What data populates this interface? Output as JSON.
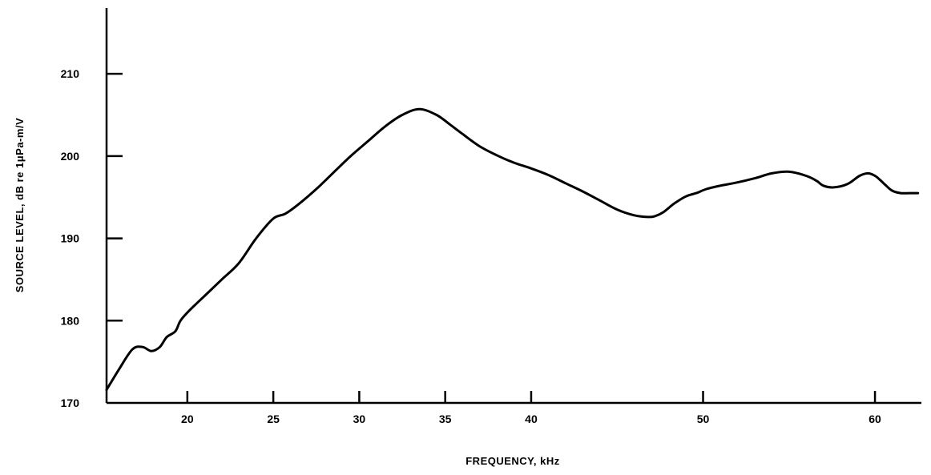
{
  "chart_data": {
    "type": "line",
    "title": "",
    "xlabel": "FREQUENCY, kHz",
    "ylabel": "SOURCE LEVEL, dB re 1μPa-m/V",
    "xlim": [
      15.3,
      62.7
    ],
    "ylim": [
      170,
      218
    ],
    "grid": false,
    "x_ticks": [
      20,
      25,
      30,
      35,
      40,
      50,
      60
    ],
    "y_ticks": [
      170,
      180,
      190,
      200,
      210
    ],
    "series": [
      {
        "x": [
          15.3,
          16.0,
          16.8,
          17.4,
          17.9,
          18.4,
          18.8,
          19.3,
          19.6,
          20.1,
          21.0,
          22.0,
          23.0,
          24.0,
          25.0,
          25.7,
          26.5,
          27.5,
          28.5,
          29.5,
          30.5,
          31.5,
          32.5,
          33.5,
          34.5,
          35.3,
          36.0,
          37.0,
          38.0,
          39.0,
          40.0,
          41.0,
          42.0,
          43.0,
          44.0,
          45.0,
          46.0,
          46.8,
          47.2,
          47.7,
          48.3,
          49.0,
          49.6,
          50.2,
          51.0,
          52.0,
          53.0,
          54.0,
          55.0,
          56.0,
          56.6,
          57.0,
          57.6,
          58.4,
          59.1,
          59.6,
          60.0,
          60.3,
          60.6,
          61.0,
          61.5,
          62.0,
          62.5
        ],
        "values": [
          171.6,
          174.0,
          176.5,
          176.8,
          176.3,
          176.8,
          178.0,
          178.7,
          180.0,
          181.2,
          183.0,
          185.0,
          187.0,
          190.0,
          192.4,
          193.0,
          194.2,
          196.0,
          198.0,
          200.0,
          201.8,
          203.6,
          205.0,
          205.7,
          205.0,
          203.8,
          202.7,
          201.2,
          200.1,
          199.2,
          198.5,
          197.7,
          196.7,
          195.7,
          194.6,
          193.5,
          192.8,
          192.6,
          192.7,
          193.2,
          194.2,
          195.1,
          195.5,
          196.0,
          196.4,
          196.8,
          197.3,
          197.9,
          198.1,
          197.6,
          197.0,
          196.4,
          196.2,
          196.6,
          197.6,
          197.9,
          197.6,
          197.1,
          196.5,
          195.8,
          195.5,
          195.5,
          195.5
        ]
      }
    ]
  }
}
